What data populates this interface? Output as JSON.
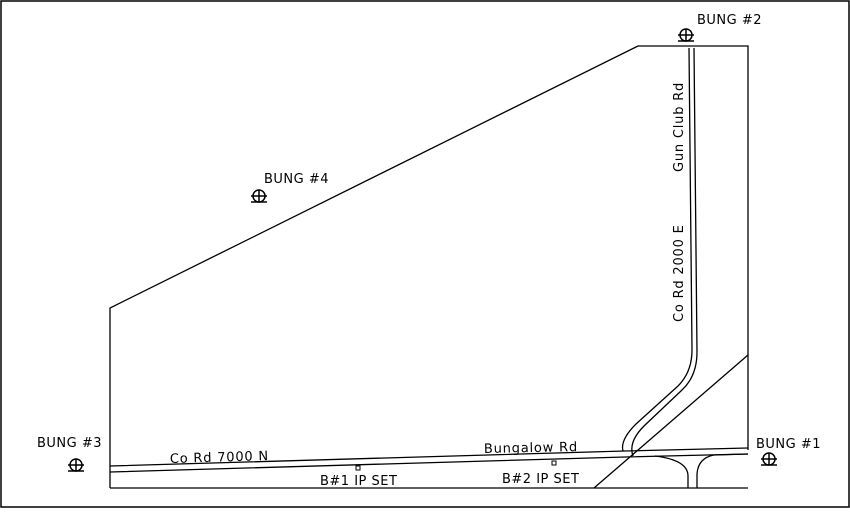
{
  "stations": [
    {
      "id": "bung1",
      "label": "BUNG  #1"
    },
    {
      "id": "bung2",
      "label": "BUNG  #2"
    },
    {
      "id": "bung3",
      "label": "BUNG  #3"
    },
    {
      "id": "bung4",
      "label": "BUNG  #4"
    }
  ],
  "roads": {
    "co_rd_7000n": "Co  Rd  7000  N",
    "bungalow_rd": "Bungalow  Rd",
    "gun_club_rd": "Gun  Club  Rd",
    "co_rd_2000e": "Co  Rd  2000  E"
  },
  "ip_sets": {
    "b1": "B#1  IP  SET",
    "b2": "B#2  IP  SET"
  },
  "line_color": "#000000",
  "symbol": "survey-monument-icon"
}
